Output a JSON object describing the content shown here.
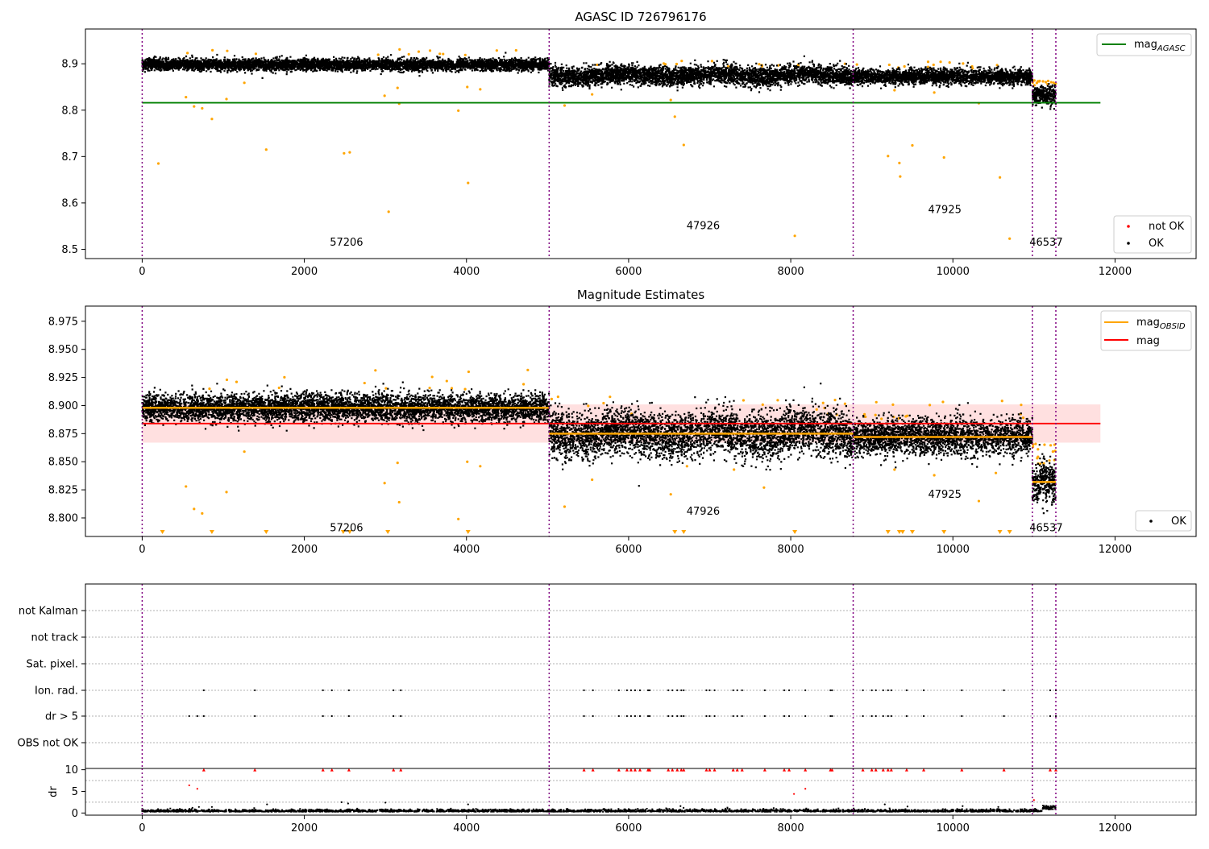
{
  "chart_data": [
    {
      "type": "scatter",
      "title": "AGASC ID 726796176",
      "xlim": [
        -700,
        13000
      ],
      "ylim": [
        8.48,
        8.975
      ],
      "xticks": [
        0,
        2000,
        4000,
        6000,
        8000,
        10000,
        12000
      ],
      "yticks": [
        8.5,
        8.6,
        8.7,
        8.8,
        8.9
      ],
      "ytick_labels": [
        "8.5",
        "8.6",
        "8.7",
        "8.8",
        "8.9"
      ],
      "obsid_boundaries": [
        0,
        5020,
        8770,
        10980,
        11270
      ],
      "obsid_labels": [
        {
          "text": "57206",
          "x": 2520,
          "y": 8.508
        },
        {
          "text": "47926",
          "x": 6920,
          "y": 8.543
        },
        {
          "text": "47925",
          "x": 9900,
          "y": 8.578
        },
        {
          "text": "46537",
          "x": 11150,
          "y": 8.508
        }
      ],
      "mag_agasc": 8.816,
      "mag_agasc_xrange": [
        0,
        11820
      ],
      "segments": [
        {
          "x": [
            0,
            5020
          ],
          "center": 8.898,
          "spread": 0.006
        },
        {
          "x": [
            5020,
            8770
          ],
          "center": 8.875,
          "spread": 0.01
        },
        {
          "x": [
            8770,
            10980
          ],
          "center": 8.872,
          "spread": 0.008
        },
        {
          "x": [
            10980,
            11270
          ],
          "center": 8.832,
          "spread": 0.01
        }
      ],
      "outliers": [
        [
          200,
          8.685
        ],
        [
          540,
          8.828
        ],
        [
          640,
          8.808
        ],
        [
          740,
          8.804
        ],
        [
          860,
          8.781
        ],
        [
          1040,
          8.824
        ],
        [
          1260,
          8.859
        ],
        [
          1530,
          8.715
        ],
        [
          2490,
          8.707
        ],
        [
          2560,
          8.709
        ],
        [
          2990,
          8.831
        ],
        [
          3040,
          8.581
        ],
        [
          3170,
          8.814
        ],
        [
          3150,
          8.848
        ],
        [
          3900,
          8.799
        ],
        [
          4020,
          8.643
        ],
        [
          4010,
          8.85
        ],
        [
          4170,
          8.845
        ],
        [
          5210,
          8.81
        ],
        [
          5550,
          8.834
        ],
        [
          6520,
          8.822
        ],
        [
          6570,
          8.786
        ],
        [
          6680,
          8.725
        ],
        [
          8050,
          8.529
        ],
        [
          9200,
          8.701
        ],
        [
          9340,
          8.686
        ],
        [
          9350,
          8.657
        ],
        [
          9500,
          8.724
        ],
        [
          9890,
          8.698
        ],
        [
          10580,
          8.655
        ],
        [
          10700,
          8.523
        ],
        [
          10320,
          8.815
        ],
        [
          9770,
          8.838
        ],
        [
          9280,
          8.843
        ]
      ],
      "legend_upper": [
        {
          "label": "mag",
          "subscript": "AGASC",
          "color": "#008000"
        }
      ],
      "legend_lower": [
        {
          "label": "not OK",
          "color": "#ff0000"
        },
        {
          "label": "OK",
          "color": "#000000"
        }
      ]
    },
    {
      "type": "scatter",
      "title": "Magnitude Estimates",
      "xlim": [
        -700,
        13000
      ],
      "ylim": [
        8.7835,
        8.9885
      ],
      "xticks": [
        0,
        2000,
        4000,
        6000,
        8000,
        10000,
        12000
      ],
      "yticks": [
        8.8,
        8.825,
        8.85,
        8.875,
        8.9,
        8.925,
        8.95,
        8.975
      ],
      "ytick_labels": [
        "8.800",
        "8.825",
        "8.850",
        "8.875",
        "8.900",
        "8.925",
        "8.950",
        "8.975"
      ],
      "obsid_boundaries": [
        0,
        5020,
        8770,
        10980,
        11270
      ],
      "obsid_labels": [
        {
          "text": "57206",
          "x": 2520,
          "y": 8.788
        },
        {
          "text": "47926",
          "x": 6920,
          "y": 8.803
        },
        {
          "text": "47925",
          "x": 9900,
          "y": 8.818
        },
        {
          "text": "46537",
          "x": 11150,
          "y": 8.788
        }
      ],
      "mag": 8.884,
      "mag_band": [
        8.867,
        8.901
      ],
      "mag_xrange": [
        0,
        11820
      ],
      "segments": [
        {
          "x": [
            0,
            5020
          ],
          "center": 8.898,
          "spread": 0.006
        },
        {
          "x": [
            5020,
            8770
          ],
          "center": 8.875,
          "spread": 0.01
        },
        {
          "x": [
            8770,
            10980
          ],
          "center": 8.872,
          "spread": 0.008
        },
        {
          "x": [
            10980,
            11270
          ],
          "center": 8.832,
          "spread": 0.01
        }
      ],
      "outliers": [
        [
          540,
          8.828
        ],
        [
          640,
          8.808
        ],
        [
          740,
          8.804
        ],
        [
          1040,
          8.823
        ],
        [
          1260,
          8.859
        ],
        [
          2990,
          8.831
        ],
        [
          3170,
          8.814
        ],
        [
          3150,
          8.849
        ],
        [
          3900,
          8.799
        ],
        [
          4010,
          8.85
        ],
        [
          4170,
          8.846
        ],
        [
          5210,
          8.81
        ],
        [
          5550,
          8.834
        ],
        [
          6520,
          8.821
        ],
        [
          7670,
          8.827
        ],
        [
          9770,
          8.838
        ],
        [
          9280,
          8.843
        ],
        [
          10320,
          8.815
        ],
        [
          10530,
          8.84
        ],
        [
          7300,
          8.843
        ],
        [
          6720,
          8.846
        ]
      ],
      "clipped_x": [
        250,
        860,
        1530,
        2480,
        2560,
        3030,
        4020,
        6570,
        6680,
        8050,
        9200,
        9340,
        9380,
        9500,
        9890,
        10580,
        10700
      ],
      "legend_upper": [
        {
          "label": "mag",
          "subscript": "OBSID",
          "color": "#ffa500"
        },
        {
          "label": "mag",
          "subscript": "",
          "color": "#ff0000"
        }
      ],
      "legend_lower": [
        {
          "label": "OK",
          "color": "#000000"
        }
      ]
    },
    {
      "type": "scatter",
      "xlim": [
        -700,
        13000
      ],
      "xticks": [
        0,
        2000,
        4000,
        6000,
        8000,
        10000,
        12000
      ],
      "obsid_boundaries": [
        0,
        5020,
        8770,
        10980,
        11270
      ],
      "flag_rows": [
        "not Kalman",
        "not track",
        "Sat. pixel.",
        "Ion. rad.",
        "dr > 5",
        "OBS not OK"
      ],
      "flag_points": {
        "Ion. rad.": [
          760,
          1390,
          2230,
          2340,
          2550,
          3100,
          3190,
          5450,
          5560,
          5880,
          5980,
          6030,
          6080,
          6140,
          6240,
          6260,
          6490,
          6540,
          6600,
          6650,
          6680,
          6960,
          7000,
          7060,
          7290,
          7340,
          7400,
          7680,
          7920,
          7980,
          8180,
          8490,
          8510,
          8890,
          9000,
          9050,
          9140,
          9200,
          9240,
          9430,
          9640,
          10110,
          10630,
          11200,
          11270
        ],
        "dr > 5": [
          580,
          680,
          760,
          1390,
          2230,
          2340,
          2550,
          3100,
          3190,
          5450,
          5560,
          5880,
          5980,
          6030,
          6080,
          6140,
          6240,
          6260,
          6490,
          6540,
          6600,
          6650,
          6680,
          6960,
          7000,
          7060,
          7290,
          7340,
          7400,
          7680,
          7920,
          7980,
          8180,
          8490,
          8510,
          8890,
          9000,
          9050,
          9140,
          9200,
          9240,
          9430,
          9640,
          10110,
          10630,
          11200,
          11270
        ]
      },
      "ylabel": "dr",
      "dr_ylim": [
        -0.5,
        10.3
      ],
      "dr_yticks": [
        0,
        5,
        10
      ],
      "dr_capped": [
        760,
        1390,
        2230,
        2340,
        2550,
        3100,
        3190,
        5450,
        5560,
        5880,
        5980,
        6030,
        6080,
        6140,
        6240,
        6260,
        6490,
        6540,
        6600,
        6650,
        6680,
        6960,
        7000,
        7060,
        7290,
        7340,
        7400,
        7680,
        7920,
        7980,
        8180,
        8490,
        8510,
        8890,
        9000,
        9050,
        9140,
        9200,
        9240,
        9430,
        9640,
        10110,
        10630,
        11200,
        11270
      ],
      "dr_red_points": [
        [
          580,
          6.4
        ],
        [
          680,
          5.6
        ],
        [
          8040,
          4.4
        ],
        [
          8180,
          5.6
        ],
        [
          11000,
          3.0
        ]
      ],
      "dr_black_points": [
        [
          620,
          1.2
        ],
        [
          700,
          1.4
        ],
        [
          860,
          1.4
        ],
        [
          1540,
          2.0
        ],
        [
          2460,
          2.5
        ],
        [
          2540,
          2.2
        ],
        [
          3000,
          2.4
        ],
        [
          4020,
          2.0
        ],
        [
          6640,
          1.6
        ],
        [
          9160,
          2.0
        ],
        [
          9440,
          1.5
        ],
        [
          10120,
          1.6
        ],
        [
          10560,
          1.4
        ]
      ],
      "dr_baseline": 0.3
    }
  ]
}
